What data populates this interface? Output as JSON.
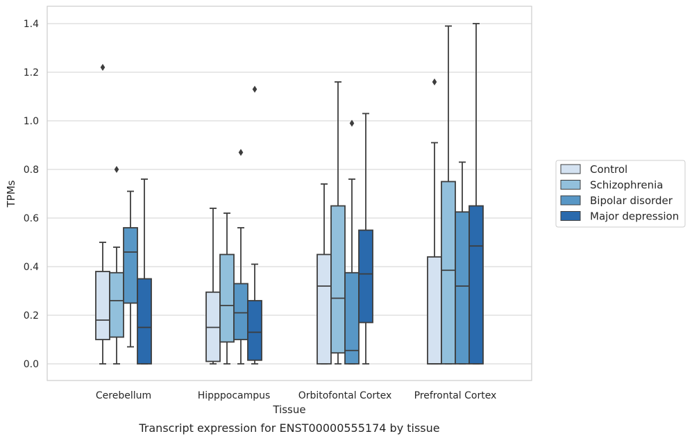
{
  "caption": "Transcript expression for ENST00000555174 by tissue",
  "chart_data": {
    "type": "box",
    "title": "",
    "xlabel": "Tissue",
    "ylabel": "TPMs",
    "ylim": [
      -0.07,
      1.47
    ],
    "yticks": [
      0.0,
      0.2,
      0.4,
      0.6,
      0.8,
      1.0,
      1.2,
      1.4
    ],
    "ytick_labels": [
      "0.0",
      "0.2",
      "0.4",
      "0.6",
      "0.8",
      "1.0",
      "1.2",
      "1.4"
    ],
    "grid": "horizontal",
    "legend_position": "right",
    "categories": [
      "Cerebellum",
      "Hipppocampus",
      "Orbitofontal Cortex",
      "Prefrontal Cortex"
    ],
    "series": [
      {
        "name": "Control",
        "color": "#d4e2f1",
        "boxes": [
          {
            "whislo": 0.0,
            "q1": 0.1,
            "med": 0.18,
            "q3": 0.38,
            "whishi": 0.5,
            "fliers": [
              1.22
            ]
          },
          {
            "whislo": 0.0,
            "q1": 0.01,
            "med": 0.15,
            "q3": 0.295,
            "whishi": 0.64,
            "fliers": []
          },
          {
            "whislo": 0.0,
            "q1": 0.0,
            "med": 0.32,
            "q3": 0.45,
            "whishi": 0.74,
            "fliers": []
          },
          {
            "whislo": 0.0,
            "q1": 0.0,
            "med": 0.0,
            "q3": 0.44,
            "whishi": 0.91,
            "fliers": [
              1.16
            ]
          }
        ]
      },
      {
        "name": "Schizophrenia",
        "color": "#92c0dc",
        "boxes": [
          {
            "whislo": 0.0,
            "q1": 0.11,
            "med": 0.26,
            "q3": 0.375,
            "whishi": 0.48,
            "fliers": [
              0.8
            ]
          },
          {
            "whislo": 0.0,
            "q1": 0.09,
            "med": 0.24,
            "q3": 0.45,
            "whishi": 0.62,
            "fliers": []
          },
          {
            "whislo": 0.0,
            "q1": 0.045,
            "med": 0.27,
            "q3": 0.65,
            "whishi": 1.16,
            "fliers": []
          },
          {
            "whislo": 0.0,
            "q1": 0.0,
            "med": 0.385,
            "q3": 0.75,
            "whishi": 1.39,
            "fliers": []
          }
        ]
      },
      {
        "name": "Bipolar disorder",
        "color": "#5897c6",
        "boxes": [
          {
            "whislo": 0.07,
            "q1": 0.25,
            "med": 0.46,
            "q3": 0.56,
            "whishi": 0.71,
            "fliers": []
          },
          {
            "whislo": 0.0,
            "q1": 0.1,
            "med": 0.21,
            "q3": 0.33,
            "whishi": 0.56,
            "fliers": [
              0.87
            ]
          },
          {
            "whislo": 0.0,
            "q1": 0.0,
            "med": 0.055,
            "q3": 0.375,
            "whishi": 0.76,
            "fliers": [
              0.99
            ]
          },
          {
            "whislo": 0.0,
            "q1": 0.0,
            "med": 0.32,
            "q3": 0.625,
            "whishi": 0.83,
            "fliers": []
          }
        ]
      },
      {
        "name": "Major depression",
        "color": "#2a6aad",
        "boxes": [
          {
            "whislo": 0.0,
            "q1": 0.0,
            "med": 0.15,
            "q3": 0.35,
            "whishi": 0.76,
            "fliers": []
          },
          {
            "whislo": 0.0,
            "q1": 0.015,
            "med": 0.13,
            "q3": 0.26,
            "whishi": 0.41,
            "fliers": [
              1.13
            ]
          },
          {
            "whislo": 0.0,
            "q1": 0.17,
            "med": 0.37,
            "q3": 0.55,
            "whishi": 1.03,
            "fliers": []
          },
          {
            "whislo": 0.0,
            "q1": 0.0,
            "med": 0.485,
            "q3": 0.65,
            "whishi": 1.4,
            "fliers": []
          }
        ]
      }
    ]
  }
}
